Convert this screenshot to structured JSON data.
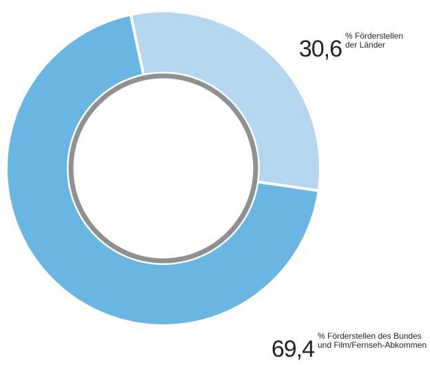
{
  "chart_data": {
    "type": "donut",
    "categories": [
      "% Förderstellen\nder Länder",
      "% Förderstellen des Bundes\nund Film/Fernseh-Abkommen"
    ],
    "values": [
      30.6,
      69.4
    ],
    "value_labels": [
      "30,6",
      "69,4"
    ],
    "colors": [
      "#b4d6ef",
      "#68b6e1"
    ]
  }
}
